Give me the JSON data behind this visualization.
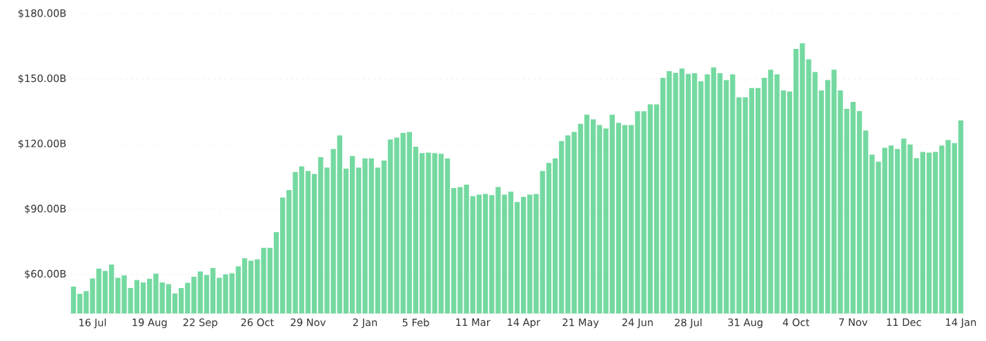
{
  "chart_data": {
    "type": "bar",
    "color": "#74d9a0",
    "categories": [
      null,
      null,
      null,
      "16 Jul",
      null,
      null,
      null,
      null,
      null,
      null,
      null,
      null,
      "19 Aug",
      null,
      null,
      null,
      null,
      null,
      null,
      null,
      "22 Sep",
      null,
      null,
      null,
      null,
      null,
      null,
      null,
      null,
      "26 Oct",
      null,
      null,
      null,
      null,
      null,
      null,
      null,
      "29 Nov",
      null,
      null,
      null,
      null,
      null,
      null,
      null,
      null,
      "2 Jan",
      null,
      null,
      null,
      null,
      null,
      null,
      null,
      "5 Feb",
      null,
      null,
      null,
      null,
      null,
      null,
      null,
      null,
      "11 Mar",
      null,
      null,
      null,
      null,
      null,
      null,
      null,
      "14 Apr",
      null,
      null,
      null,
      null,
      null,
      null,
      null,
      null,
      "21 May",
      null,
      null,
      null,
      null,
      null,
      null,
      null,
      null,
      "24 Jun",
      null,
      null,
      null,
      null,
      null,
      null,
      null,
      "28 Jul",
      null,
      null,
      null,
      null,
      null,
      null,
      null,
      null,
      "31 Aug",
      null,
      null,
      null,
      null,
      null,
      null,
      null,
      "4 Oct",
      null,
      null,
      null,
      null,
      null,
      null,
      null,
      null,
      "7 Nov",
      null,
      null,
      null,
      null,
      null,
      null,
      null,
      "11 Dec",
      null,
      null,
      null,
      null,
      null,
      null,
      null,
      null,
      "14 Jan"
    ],
    "values": [
      54.4,
      51.0,
      52.3,
      58.1,
      62.6,
      61.6,
      64.5,
      58.4,
      59.5,
      53.7,
      57.4,
      56.3,
      57.9,
      60.3,
      56.3,
      55.5,
      51.2,
      53.7,
      56.1,
      58.9,
      61.3,
      59.7,
      62.9,
      58.4,
      60.0,
      60.5,
      63.7,
      67.4,
      66.3,
      66.9,
      72.2,
      72.2,
      79.4,
      95.4,
      98.8,
      107.1,
      109.7,
      107.6,
      106.2,
      114.0,
      109.2,
      117.7,
      124.0,
      108.7,
      114.5,
      109.2,
      113.4,
      113.4,
      109.2,
      112.4,
      122.1,
      123.0,
      125.1,
      125.6,
      118.8,
      115.8,
      116.1,
      115.8,
      115.5,
      113.4,
      99.7,
      100.2,
      101.3,
      96.0,
      96.7,
      97.0,
      96.5,
      100.2,
      96.7,
      98.1,
      93.3,
      95.7,
      96.7,
      97.0,
      107.6,
      111.3,
      113.4,
      121.4,
      124.0,
      125.6,
      129.3,
      133.5,
      131.4,
      128.8,
      127.2,
      133.5,
      129.8,
      128.8,
      128.8,
      135.1,
      135.1,
      138.3,
      138.3,
      150.5,
      153.6,
      152.8,
      154.8,
      152.3,
      152.6,
      148.9,
      152.1,
      155.3,
      152.6,
      149.5,
      152.1,
      141.5,
      141.5,
      145.8,
      145.8,
      150.5,
      154.2,
      152.1,
      144.7,
      144.2,
      163.8,
      166.4,
      159.0,
      153.2,
      144.7,
      149.5,
      154.2,
      144.7,
      136.2,
      139.4,
      135.2,
      126.2,
      115.1,
      111.9,
      118.3,
      119.3,
      117.7,
      122.5,
      119.8,
      113.5,
      116.4,
      116.1,
      116.4,
      119.3,
      121.9,
      120.4,
      130.9
    ],
    "ylim": [
      42,
      180
    ],
    "yticks": [
      {
        "value": 60,
        "label": "$60.00B"
      },
      {
        "value": 90,
        "label": "$90.00B"
      },
      {
        "value": 120,
        "label": "$120.00B"
      },
      {
        "value": 150,
        "label": "$150.00B"
      },
      {
        "value": 180,
        "label": "$180.00B"
      }
    ],
    "grid": "y"
  }
}
